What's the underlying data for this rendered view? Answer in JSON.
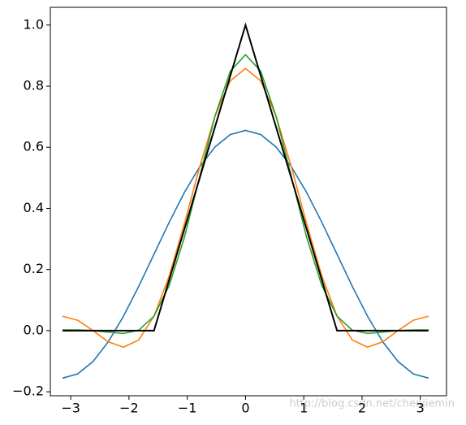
{
  "chart_data": {
    "type": "line",
    "x": [
      -3.1416,
      -2.8798,
      -2.618,
      -2.3562,
      -2.0944,
      -1.8326,
      -1.5708,
      -1.309,
      -1.0472,
      -0.7854,
      -0.5236,
      -0.2618,
      0,
      0.2618,
      0.5236,
      0.7854,
      1.0472,
      1.309,
      1.5708,
      1.8326,
      2.0944,
      2.3562,
      2.618,
      2.8798,
      3.1416
    ],
    "series": [
      {
        "color": "#000000",
        "values": [
          0,
          0,
          0,
          0,
          0,
          0,
          0,
          0.1667,
          0.3333,
          0.5,
          0.6667,
          0.8333,
          1,
          0.8333,
          0.6667,
          0.5,
          0.3333,
          0.1667,
          0,
          0,
          0,
          0,
          0,
          0,
          0
        ]
      },
      {
        "color": "#1f77b4",
        "values": [
          -0.1553,
          -0.1415,
          -0.101,
          -0.0366,
          0.0473,
          0.1451,
          0.25,
          0.3549,
          0.4527,
          0.5366,
          0.601,
          0.6415,
          0.6553,
          0.6415,
          0.601,
          0.5366,
          0.4527,
          0.3549,
          0.25,
          0.1451,
          0.0473,
          -0.0366,
          -0.101,
          -0.1415,
          -0.1553
        ]
      },
      {
        "color": "#ff7f0e",
        "values": [
          0.0473,
          0.034,
          0.0003,
          -0.0366,
          -0.054,
          -0.0304,
          0.0474,
          0.1794,
          0.3514,
          0.5366,
          0.7023,
          0.817,
          0.8579,
          0.817,
          0.7023,
          0.5366,
          0.3514,
          0.1794,
          0.0474,
          -0.0304,
          -0.054,
          -0.0366,
          0.0003,
          0.034,
          0.0473
        ]
      },
      {
        "color": "#2ca02c",
        "values": [
          0.0023,
          0.0022,
          0.0003,
          -0.0048,
          -0.009,
          0.0014,
          0.0474,
          0.1476,
          0.3064,
          0.5048,
          0.7023,
          0.8488,
          0.9029,
          0.8488,
          0.7023,
          0.5048,
          0.3064,
          0.1476,
          0.0474,
          0.0014,
          -0.009,
          -0.0048,
          0.0003,
          0.0022,
          0.0023
        ]
      }
    ],
    "xlim": [
      -3.35,
      3.45
    ],
    "ylim": [
      -0.213,
      1.058
    ],
    "xticks": [
      {
        "value": -3,
        "label": "−3"
      },
      {
        "value": -2,
        "label": "−2"
      },
      {
        "value": -1,
        "label": "−1"
      },
      0,
      1,
      2,
      3
    ],
    "yticks": [
      {
        "value": -0.2,
        "label": "−0.2"
      },
      {
        "value": 0,
        "label": "0.0"
      },
      {
        "value": 0.2,
        "label": "0.2"
      },
      {
        "value": 0.4,
        "label": "0.4"
      },
      {
        "value": 0.6,
        "label": "0.6"
      },
      {
        "value": 0.8,
        "label": "0.8"
      },
      {
        "value": 1,
        "label": "1.0"
      }
    ],
    "watermark": "http://blog.csdn.net/chenjiemin"
  }
}
